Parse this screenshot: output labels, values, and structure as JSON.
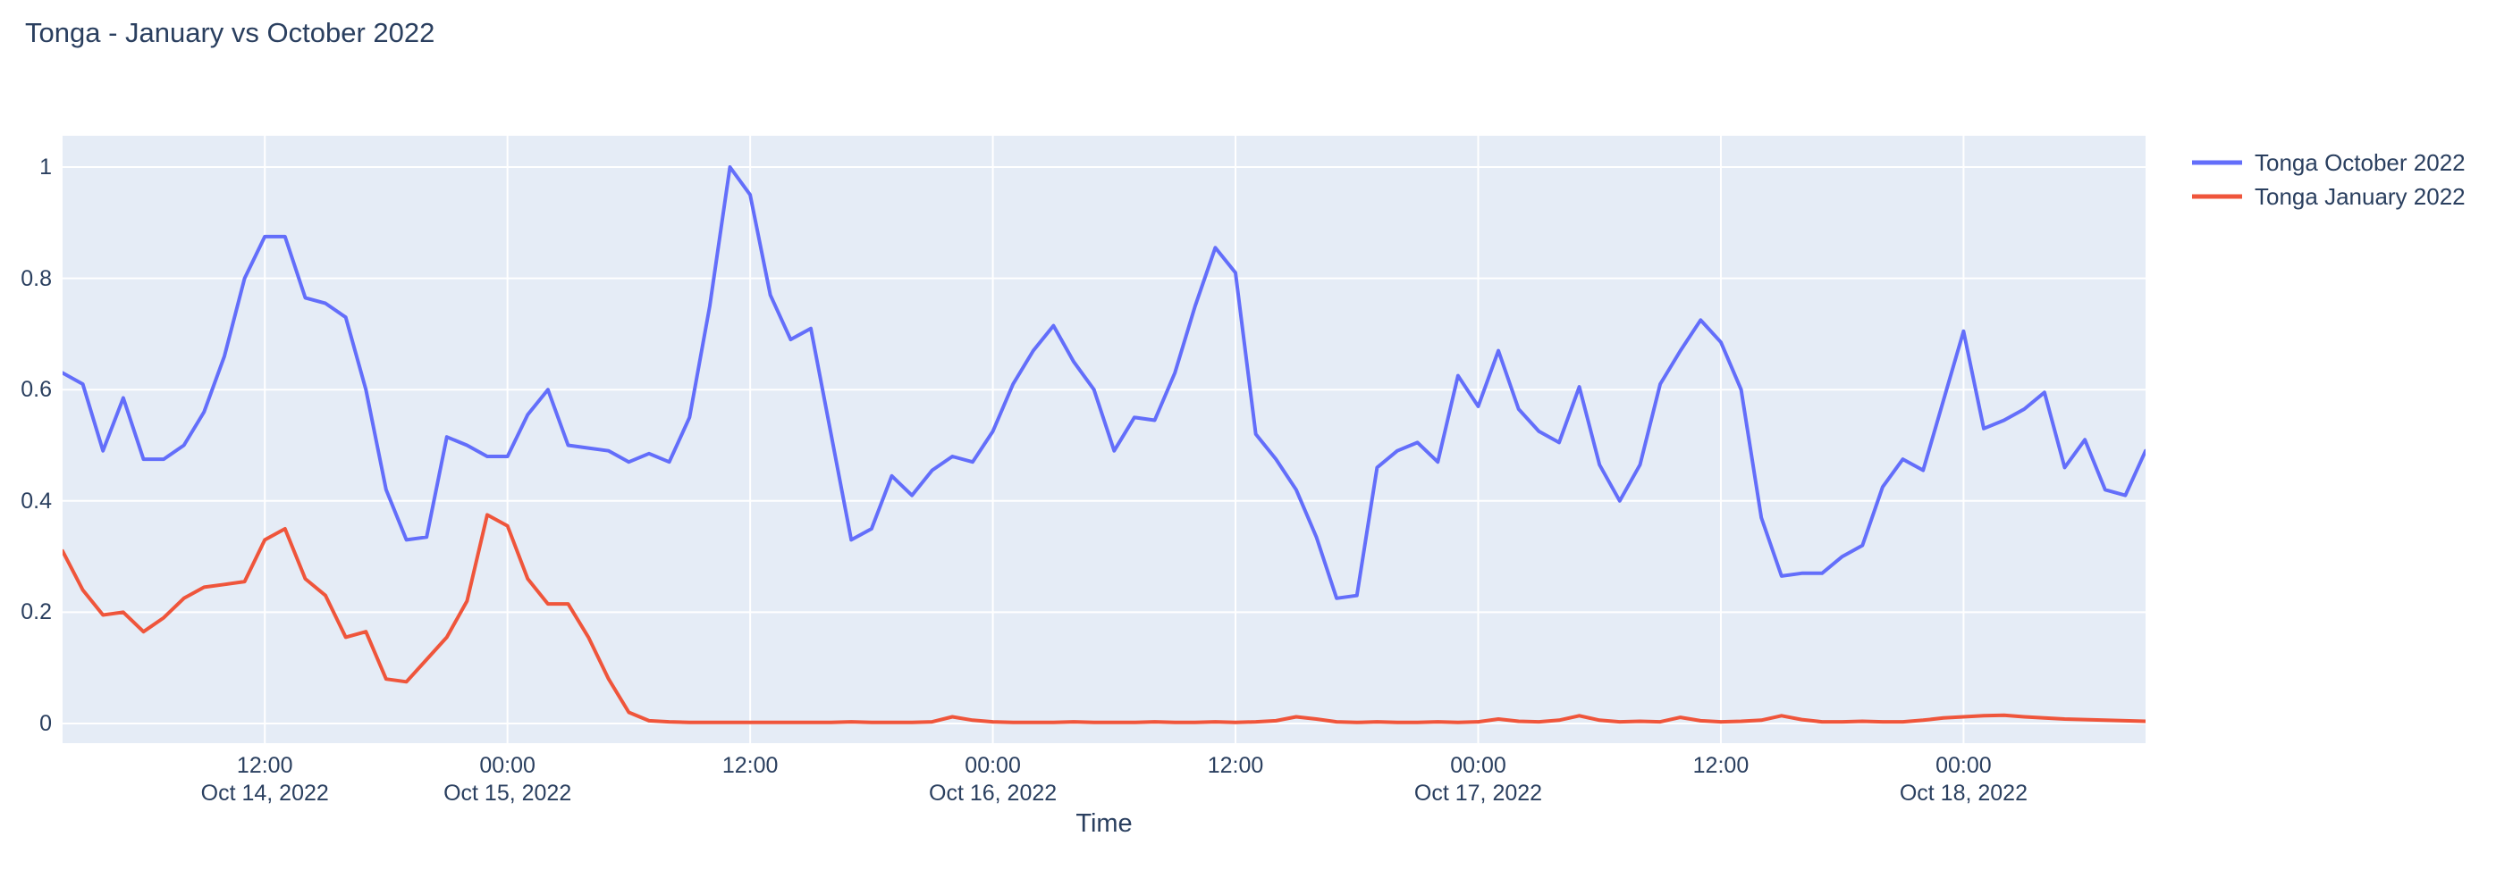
{
  "chart_data": {
    "type": "line",
    "title": "Tonga - January vs October 2022",
    "xlabel": "Time",
    "ylabel": "",
    "grid": true,
    "legend_position": "right-outside-top",
    "plot_bg": "#E5ECF6",
    "grid_color": "#FFFFFF",
    "text_color": "#2a3f5f",
    "ylim": [
      -0.035,
      1.056
    ],
    "x_start": "2022-10-14 02:00",
    "x_step_hours": 1,
    "first_point_hour": 2,
    "y_axis_ticks": [
      {
        "value": 0,
        "label": "0"
      },
      {
        "value": 0.2,
        "label": "0.2"
      },
      {
        "value": 0.4,
        "label": "0.4"
      },
      {
        "value": 0.6,
        "label": "0.6"
      },
      {
        "value": 0.8,
        "label": "0.8"
      },
      {
        "value": 1,
        "label": "1"
      }
    ],
    "x_axis_ticks": [
      {
        "hour": 12,
        "time": "12:00",
        "date": "Oct 14, 2022"
      },
      {
        "hour": 24,
        "time": "00:00",
        "date": "Oct 15, 2022"
      },
      {
        "hour": 36,
        "time": "12:00",
        "date": ""
      },
      {
        "hour": 48,
        "time": "00:00",
        "date": "Oct 16, 2022"
      },
      {
        "hour": 60,
        "time": "12:00",
        "date": ""
      },
      {
        "hour": 72,
        "time": "00:00",
        "date": "Oct 17, 2022"
      },
      {
        "hour": 84,
        "time": "12:00",
        "date": ""
      },
      {
        "hour": 96,
        "time": "00:00",
        "date": "Oct 18, 2022"
      }
    ],
    "series": [
      {
        "name": "Tonga October 2022",
        "color": "#636EFA",
        "values": [
          0.63,
          0.61,
          0.49,
          0.585,
          0.475,
          0.475,
          0.5,
          0.56,
          0.66,
          0.8,
          0.875,
          0.875,
          0.765,
          0.755,
          0.73,
          0.6,
          0.42,
          0.33,
          0.335,
          0.515,
          0.5,
          0.48,
          0.48,
          0.555,
          0.6,
          0.5,
          0.495,
          0.49,
          0.47,
          0.485,
          0.47,
          0.55,
          0.75,
          1.0,
          0.95,
          0.77,
          0.69,
          0.71,
          0.52,
          0.33,
          0.35,
          0.445,
          0.41,
          0.455,
          0.48,
          0.47,
          0.525,
          0.61,
          0.67,
          0.715,
          0.65,
          0.6,
          0.49,
          0.55,
          0.545,
          0.63,
          0.75,
          0.855,
          0.81,
          0.52,
          0.475,
          0.42,
          0.335,
          0.225,
          0.23,
          0.46,
          0.49,
          0.505,
          0.47,
          0.625,
          0.57,
          0.67,
          0.565,
          0.525,
          0.505,
          0.605,
          0.465,
          0.4,
          0.465,
          0.61,
          0.67,
          0.725,
          0.685,
          0.6,
          0.37,
          0.265,
          0.27,
          0.27,
          0.3,
          0.32,
          0.425,
          0.475,
          0.455,
          0.58,
          0.705,
          0.53,
          0.545,
          0.565,
          0.595,
          0.46,
          0.51,
          0.42,
          0.41,
          0.49
        ]
      },
      {
        "name": "Tonga January 2022",
        "color": "#EF553B",
        "values": [
          0.31,
          0.24,
          0.195,
          0.2,
          0.165,
          0.19,
          0.225,
          0.245,
          0.25,
          0.255,
          0.33,
          0.35,
          0.26,
          0.23,
          0.155,
          0.165,
          0.08,
          0.075,
          0.115,
          0.155,
          0.22,
          0.375,
          0.355,
          0.26,
          0.215,
          0.215,
          0.155,
          0.08,
          0.02,
          0.005,
          0.003,
          0.002,
          0.002,
          0.002,
          0.002,
          0.002,
          0.002,
          0.002,
          0.002,
          0.003,
          0.002,
          0.002,
          0.002,
          0.003,
          0.012,
          0.006,
          0.003,
          0.002,
          0.002,
          0.002,
          0.003,
          0.002,
          0.002,
          0.002,
          0.003,
          0.002,
          0.002,
          0.003,
          0.002,
          0.003,
          0.005,
          0.012,
          0.008,
          0.003,
          0.002,
          0.003,
          0.002,
          0.002,
          0.003,
          0.002,
          0.003,
          0.008,
          0.004,
          0.003,
          0.006,
          0.014,
          0.006,
          0.003,
          0.004,
          0.003,
          0.011,
          0.005,
          0.003,
          0.004,
          0.006,
          0.014,
          0.007,
          0.003,
          0.003,
          0.004,
          0.003,
          0.003,
          0.006,
          0.01,
          0.012,
          0.014,
          0.015,
          0.012,
          0.01,
          0.008,
          0.007,
          0.006,
          0.005,
          0.004
        ]
      }
    ]
  }
}
